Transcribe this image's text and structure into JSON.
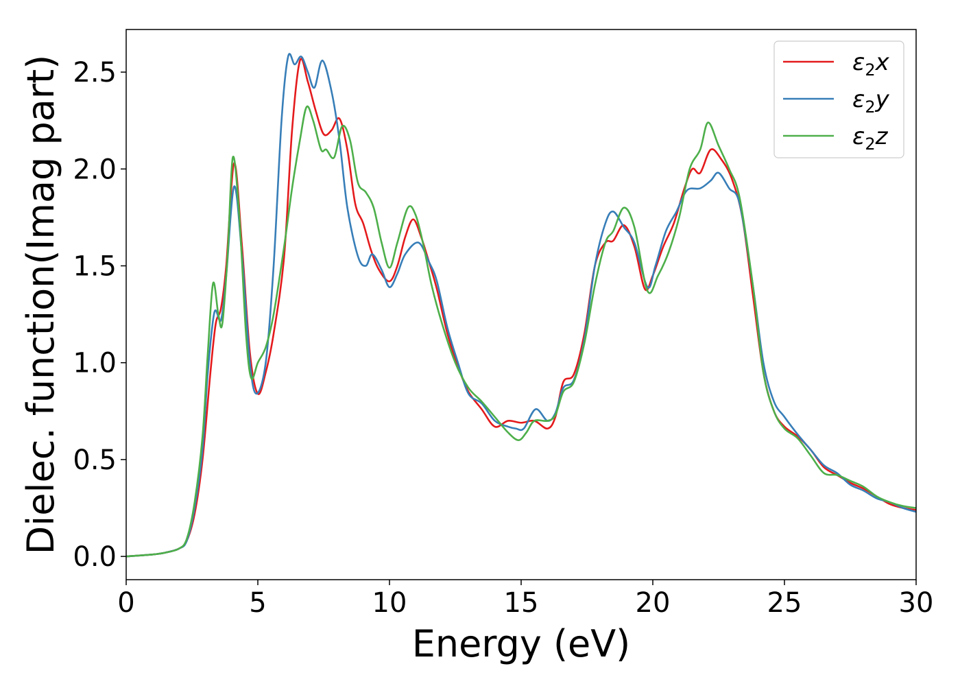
{
  "chart_data": {
    "type": "line",
    "title": "",
    "xlabel": "Energy (eV)",
    "ylabel": "Dielec. function(Imag part)",
    "xlim": [
      0,
      30
    ],
    "ylim": [
      -0.12,
      2.72
    ],
    "xticks": [
      0,
      5,
      10,
      15,
      20,
      25,
      30
    ],
    "xtick_labels": [
      "0",
      "5",
      "10",
      "15",
      "20",
      "25",
      "30"
    ],
    "yticks": [
      0.0,
      0.5,
      1.0,
      1.5,
      2.0,
      2.5
    ],
    "ytick_labels": [
      "0.0",
      "0.5",
      "1.0",
      "1.5",
      "2.0",
      "2.5"
    ],
    "grid": false,
    "legend_position": "top-right",
    "series": [
      {
        "name_base": "ε",
        "name_sub": "2",
        "name_var": "x",
        "color": "#e41a1c",
        "points": [
          [
            0,
            0
          ],
          [
            1,
            0.01
          ],
          [
            1.5,
            0.02
          ],
          [
            2,
            0.04
          ],
          [
            2.3,
            0.08
          ],
          [
            2.6,
            0.22
          ],
          [
            2.9,
            0.5
          ],
          [
            3.2,
            0.95
          ],
          [
            3.4,
            1.2
          ],
          [
            3.6,
            1.28
          ],
          [
            3.8,
            1.5
          ],
          [
            4.1,
            2.03
          ],
          [
            4.4,
            1.6
          ],
          [
            4.7,
            1.05
          ],
          [
            5.0,
            0.84
          ],
          [
            5.3,
            0.95
          ],
          [
            5.6,
            1.15
          ],
          [
            6.0,
            1.55
          ],
          [
            6.3,
            2.2
          ],
          [
            6.6,
            2.56
          ],
          [
            6.9,
            2.45
          ],
          [
            7.2,
            2.3
          ],
          [
            7.5,
            2.18
          ],
          [
            7.8,
            2.2
          ],
          [
            8.1,
            2.26
          ],
          [
            8.4,
            2.1
          ],
          [
            8.7,
            1.82
          ],
          [
            9.0,
            1.72
          ],
          [
            9.3,
            1.58
          ],
          [
            9.6,
            1.48
          ],
          [
            10.0,
            1.42
          ],
          [
            10.3,
            1.5
          ],
          [
            10.6,
            1.65
          ],
          [
            10.9,
            1.74
          ],
          [
            11.2,
            1.65
          ],
          [
            11.5,
            1.52
          ],
          [
            11.8,
            1.38
          ],
          [
            12.2,
            1.15
          ],
          [
            12.6,
            0.98
          ],
          [
            13.0,
            0.85
          ],
          [
            13.5,
            0.76
          ],
          [
            14.0,
            0.67
          ],
          [
            14.5,
            0.7
          ],
          [
            15.0,
            0.69
          ],
          [
            15.5,
            0.7
          ],
          [
            16.0,
            0.66
          ],
          [
            16.3,
            0.72
          ],
          [
            16.6,
            0.9
          ],
          [
            17.0,
            0.94
          ],
          [
            17.4,
            1.15
          ],
          [
            17.8,
            1.5
          ],
          [
            18.2,
            1.62
          ],
          [
            18.5,
            1.63
          ],
          [
            18.9,
            1.71
          ],
          [
            19.3,
            1.6
          ],
          [
            19.7,
            1.38
          ],
          [
            20.0,
            1.45
          ],
          [
            20.4,
            1.6
          ],
          [
            20.8,
            1.72
          ],
          [
            21.2,
            1.9
          ],
          [
            21.5,
            2.0
          ],
          [
            21.8,
            1.98
          ],
          [
            22.2,
            2.1
          ],
          [
            22.6,
            2.05
          ],
          [
            23.0,
            1.95
          ],
          [
            23.4,
            1.75
          ],
          [
            23.8,
            1.35
          ],
          [
            24.2,
            0.95
          ],
          [
            24.6,
            0.75
          ],
          [
            25.0,
            0.67
          ],
          [
            25.5,
            0.62
          ],
          [
            26.0,
            0.55
          ],
          [
            26.5,
            0.46
          ],
          [
            27.0,
            0.42
          ],
          [
            27.5,
            0.38
          ],
          [
            28.0,
            0.35
          ],
          [
            28.5,
            0.31
          ],
          [
            29.0,
            0.27
          ],
          [
            29.5,
            0.25
          ],
          [
            30.0,
            0.24
          ]
        ]
      },
      {
        "name_base": "ε",
        "name_sub": "2",
        "name_var": "y",
        "color": "#377eb8",
        "points": [
          [
            0,
            0
          ],
          [
            1,
            0.01
          ],
          [
            1.5,
            0.02
          ],
          [
            2,
            0.04
          ],
          [
            2.3,
            0.08
          ],
          [
            2.6,
            0.25
          ],
          [
            2.9,
            0.55
          ],
          [
            3.1,
            0.95
          ],
          [
            3.35,
            1.26
          ],
          [
            3.6,
            1.22
          ],
          [
            3.8,
            1.45
          ],
          [
            4.1,
            1.91
          ],
          [
            4.4,
            1.55
          ],
          [
            4.7,
            1.0
          ],
          [
            4.95,
            0.84
          ],
          [
            5.3,
            1.0
          ],
          [
            5.6,
            1.5
          ],
          [
            5.9,
            2.25
          ],
          [
            6.15,
            2.58
          ],
          [
            6.4,
            2.54
          ],
          [
            6.65,
            2.58
          ],
          [
            6.9,
            2.5
          ],
          [
            7.15,
            2.42
          ],
          [
            7.45,
            2.56
          ],
          [
            7.8,
            2.4
          ],
          [
            8.1,
            2.15
          ],
          [
            8.4,
            1.8
          ],
          [
            8.8,
            1.55
          ],
          [
            9.1,
            1.5
          ],
          [
            9.35,
            1.56
          ],
          [
            9.7,
            1.48
          ],
          [
            10.0,
            1.39
          ],
          [
            10.3,
            1.46
          ],
          [
            10.6,
            1.56
          ],
          [
            11.1,
            1.62
          ],
          [
            11.5,
            1.52
          ],
          [
            11.8,
            1.42
          ],
          [
            12.2,
            1.18
          ],
          [
            12.6,
            1.0
          ],
          [
            13.0,
            0.84
          ],
          [
            13.5,
            0.79
          ],
          [
            14.0,
            0.7
          ],
          [
            14.5,
            0.67
          ],
          [
            14.8,
            0.66
          ],
          [
            15.1,
            0.66
          ],
          [
            15.55,
            0.76
          ],
          [
            16.0,
            0.7
          ],
          [
            16.3,
            0.74
          ],
          [
            16.6,
            0.87
          ],
          [
            17.0,
            0.91
          ],
          [
            17.4,
            1.12
          ],
          [
            17.8,
            1.5
          ],
          [
            18.2,
            1.72
          ],
          [
            18.5,
            1.78
          ],
          [
            18.9,
            1.7
          ],
          [
            19.3,
            1.62
          ],
          [
            19.8,
            1.39
          ],
          [
            20.1,
            1.5
          ],
          [
            20.5,
            1.68
          ],
          [
            20.9,
            1.78
          ],
          [
            21.3,
            1.89
          ],
          [
            21.8,
            1.9
          ],
          [
            22.2,
            1.94
          ],
          [
            22.5,
            1.98
          ],
          [
            22.9,
            1.9
          ],
          [
            23.3,
            1.82
          ],
          [
            23.8,
            1.4
          ],
          [
            24.2,
            1.0
          ],
          [
            24.6,
            0.8
          ],
          [
            25.0,
            0.72
          ],
          [
            25.5,
            0.63
          ],
          [
            26.0,
            0.55
          ],
          [
            26.5,
            0.47
          ],
          [
            27.0,
            0.43
          ],
          [
            27.5,
            0.37
          ],
          [
            28.0,
            0.34
          ],
          [
            28.5,
            0.3
          ],
          [
            29.0,
            0.28
          ],
          [
            29.5,
            0.25
          ],
          [
            30.0,
            0.23
          ]
        ]
      },
      {
        "name_base": "ε",
        "name_sub": "2",
        "name_var": "z",
        "color": "#4daf4a",
        "points": [
          [
            0,
            0
          ],
          [
            1,
            0.01
          ],
          [
            1.5,
            0.02
          ],
          [
            2,
            0.04
          ],
          [
            2.3,
            0.09
          ],
          [
            2.6,
            0.28
          ],
          [
            2.9,
            0.62
          ],
          [
            3.1,
            1.05
          ],
          [
            3.3,
            1.41
          ],
          [
            3.5,
            1.25
          ],
          [
            3.65,
            1.2
          ],
          [
            3.85,
            1.55
          ],
          [
            4.05,
            2.06
          ],
          [
            4.3,
            1.75
          ],
          [
            4.55,
            1.15
          ],
          [
            4.75,
            0.92
          ],
          [
            5.0,
            1.0
          ],
          [
            5.3,
            1.08
          ],
          [
            5.6,
            1.25
          ],
          [
            6.0,
            1.6
          ],
          [
            6.3,
            1.9
          ],
          [
            6.6,
            2.15
          ],
          [
            6.85,
            2.32
          ],
          [
            7.1,
            2.25
          ],
          [
            7.4,
            2.1
          ],
          [
            7.6,
            2.1
          ],
          [
            7.9,
            2.06
          ],
          [
            8.2,
            2.22
          ],
          [
            8.5,
            2.15
          ],
          [
            8.8,
            1.93
          ],
          [
            9.1,
            1.88
          ],
          [
            9.4,
            1.8
          ],
          [
            9.7,
            1.62
          ],
          [
            10.0,
            1.49
          ],
          [
            10.3,
            1.62
          ],
          [
            10.7,
            1.8
          ],
          [
            11.0,
            1.76
          ],
          [
            11.3,
            1.6
          ],
          [
            11.6,
            1.4
          ],
          [
            12.0,
            1.2
          ],
          [
            12.5,
            1.0
          ],
          [
            13.0,
            0.87
          ],
          [
            13.5,
            0.8
          ],
          [
            14.0,
            0.72
          ],
          [
            14.5,
            0.64
          ],
          [
            14.9,
            0.6
          ],
          [
            15.2,
            0.64
          ],
          [
            15.5,
            0.7
          ],
          [
            16.0,
            0.7
          ],
          [
            16.3,
            0.73
          ],
          [
            16.6,
            0.85
          ],
          [
            17.0,
            0.9
          ],
          [
            17.4,
            1.1
          ],
          [
            17.8,
            1.4
          ],
          [
            18.2,
            1.62
          ],
          [
            18.5,
            1.68
          ],
          [
            18.9,
            1.8
          ],
          [
            19.3,
            1.7
          ],
          [
            19.8,
            1.37
          ],
          [
            20.2,
            1.45
          ],
          [
            20.6,
            1.57
          ],
          [
            21.0,
            1.75
          ],
          [
            21.4,
            2.0
          ],
          [
            21.8,
            2.1
          ],
          [
            22.1,
            2.24
          ],
          [
            22.5,
            2.12
          ],
          [
            22.9,
            2.0
          ],
          [
            23.3,
            1.85
          ],
          [
            23.8,
            1.4
          ],
          [
            24.2,
            0.95
          ],
          [
            24.6,
            0.75
          ],
          [
            25.0,
            0.66
          ],
          [
            25.5,
            0.61
          ],
          [
            26.0,
            0.52
          ],
          [
            26.5,
            0.43
          ],
          [
            27.0,
            0.42
          ],
          [
            27.5,
            0.39
          ],
          [
            28.0,
            0.36
          ],
          [
            28.5,
            0.31
          ],
          [
            29.0,
            0.28
          ],
          [
            29.5,
            0.26
          ],
          [
            30.0,
            0.25
          ]
        ]
      }
    ]
  }
}
